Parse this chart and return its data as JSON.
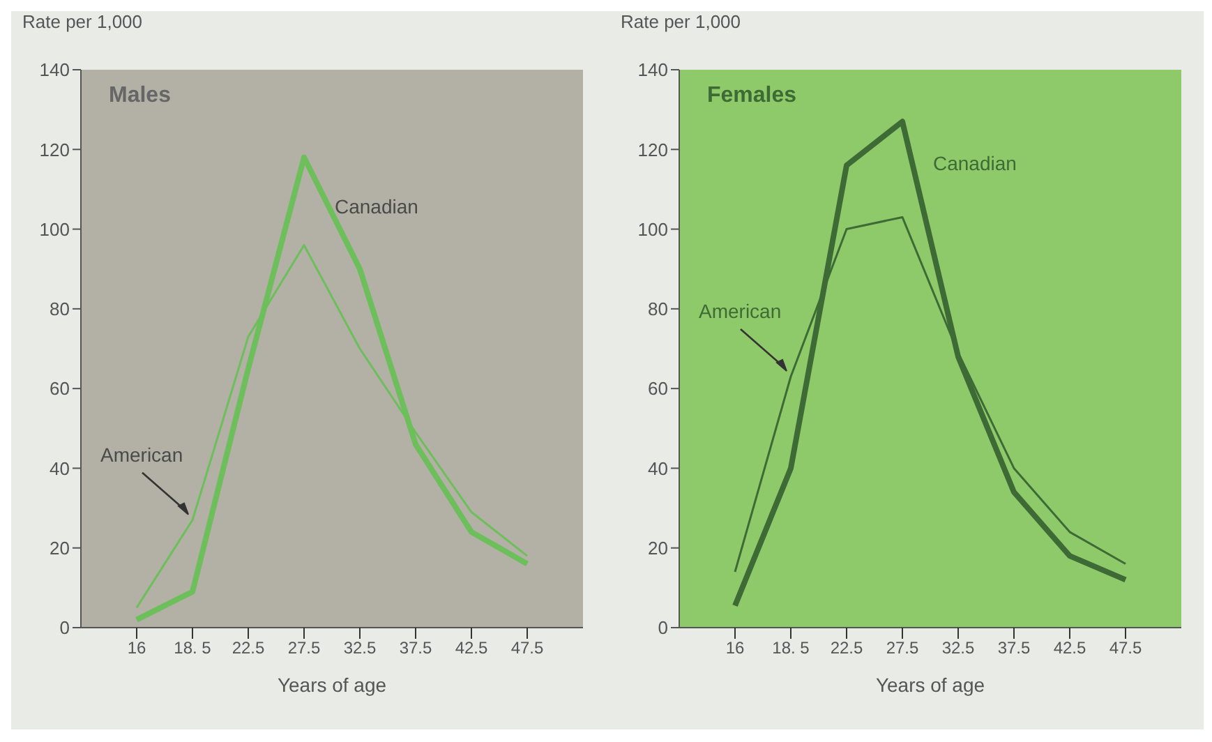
{
  "chart_data": [
    {
      "type": "line",
      "title": "Males",
      "ylabel": "Rate per 1,000",
      "xlabel": "Years of age",
      "categories": [
        "16",
        "18. 5",
        "22.5",
        "27.5",
        "32.5",
        "37.5",
        "42.5",
        "47.5"
      ],
      "series": [
        {
          "name": "Canadian",
          "color": "#6cbf5a",
          "values": [
            2,
            9,
            65,
            118,
            90,
            46,
            24,
            16
          ]
        },
        {
          "name": "American",
          "color": "#6cbf5a",
          "values": [
            5,
            27,
            73,
            96,
            70,
            49,
            29,
            18
          ]
        }
      ],
      "ylim": [
        0,
        140
      ],
      "yticks": [
        0,
        20,
        40,
        60,
        80,
        100,
        120,
        140
      ],
      "grid": false,
      "legend": false,
      "marker": "none",
      "line_style": "solid"
    },
    {
      "type": "line",
      "title": "Females",
      "ylabel": "Rate per 1,000",
      "xlabel": "Years of age",
      "categories": [
        "16",
        "18. 5",
        "22.5",
        "27.5",
        "32.5",
        "37.5",
        "42.5",
        "47.5"
      ],
      "series": [
        {
          "name": "Canadian",
          "color": "#3e6b35",
          "values": [
            5.5,
            40,
            116,
            127,
            68,
            34,
            18,
            12
          ]
        },
        {
          "name": "American",
          "color": "#3e6b35",
          "values": [
            14,
            63,
            100,
            103,
            69,
            40,
            24,
            16
          ]
        }
      ],
      "ylim": [
        0,
        140
      ],
      "yticks": [
        0,
        20,
        40,
        60,
        80,
        100,
        120,
        140
      ],
      "grid": false,
      "legend": false,
      "marker": "none",
      "line_style": "solid"
    }
  ]
}
